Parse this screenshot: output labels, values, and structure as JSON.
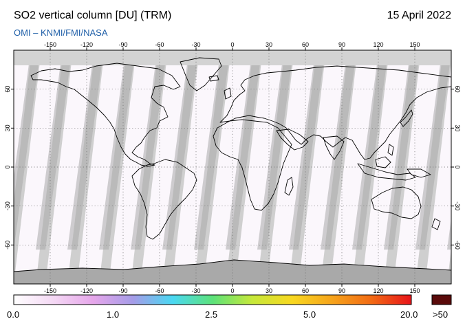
{
  "header": {
    "title": "SO2 vertical column [DU] (TRM)",
    "date": "15 April 2022",
    "credit": "OMI  –  KNMI/FMI/NASA"
  },
  "map": {
    "projection": "equirectangular",
    "lon_range": [
      -180,
      180
    ],
    "lat_range": [
      -90,
      90
    ],
    "lon_ticks": [
      "-150",
      "-120",
      "-90",
      "-60",
      "-30",
      "0",
      "30",
      "60",
      "90",
      "120",
      "150"
    ],
    "lon_tick_values": [
      -150,
      -120,
      -90,
      -60,
      -30,
      0,
      30,
      60,
      90,
      120,
      150
    ],
    "lat_ticks": [
      "60",
      "30",
      "0",
      "-30",
      "-60"
    ],
    "lat_tick_values": [
      60,
      30,
      0,
      -30,
      -60
    ],
    "grid": "dotted",
    "colors": {
      "no_data": "#cfcfcf",
      "polar_dark": "#a9a9a9",
      "swath_gap": "#c9c9c9",
      "low_value": "#fbf7fc",
      "coastline": "#000000"
    }
  },
  "colorbar": {
    "labels": [
      "0.0",
      "1.0",
      "2.5",
      "5.0",
      "20.0"
    ],
    "over_label": ">50",
    "colors": [
      "#ffffff",
      "#f4d8f4",
      "#e6a6ea",
      "#a59ce8",
      "#4ad8f2",
      "#5ce27a",
      "#c6e83a",
      "#f8d820",
      "#f6a41c",
      "#f26a14",
      "#e8141a"
    ],
    "over_color": "#5a0a0a"
  }
}
